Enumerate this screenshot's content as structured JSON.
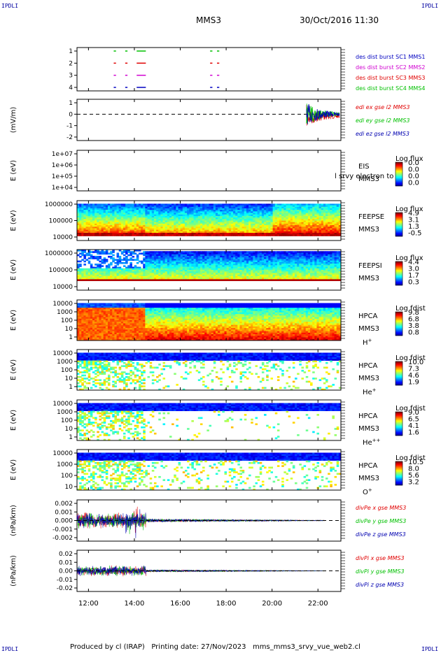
{
  "header": {
    "corner_label": "IPDLI",
    "spacecraft": "MMS3",
    "datetime": "30/Oct/2016 11:30"
  },
  "footer": {
    "text": "Produced by cl (IRAP)   Printing date: 27/Nov/2023   mms_mms3_srvy_vue_web2.cl"
  },
  "colors": {
    "red": "#e00000",
    "magenta": "#d000d0",
    "blue": "#0000c0",
    "green": "#00c000",
    "dark_red": "#b00000",
    "dark_blue": "#0000b0"
  },
  "x_axis": {
    "ticks": [
      "12:00",
      "14:00",
      "16:00",
      "18:00",
      "20:00",
      "22:00"
    ],
    "range_hours": [
      11.5,
      23.0
    ]
  },
  "chart_data": [
    {
      "type": "line",
      "id": "burst",
      "ylim": [
        0.5,
        4.5
      ],
      "yticks": [
        "1",
        "2",
        "3",
        "4"
      ],
      "legend": [
        {
          "name": "des dist burst SC1 MMS1",
          "color": "#0000c0"
        },
        {
          "name": "des dist burst SC2 MMS2",
          "color": "#d000d0"
        },
        {
          "name": "des dist burst SC3 MMS3",
          "color": "#e00000"
        },
        {
          "name": "des dist burst SC4 MMS4",
          "color": "#00c000"
        }
      ],
      "segments": [
        {
          "level": 4,
          "color": "#00c000",
          "x": [
            [
              13.1,
              13.2
            ],
            [
              13.6,
              13.7
            ],
            [
              14.1,
              14.5
            ],
            [
              17.3,
              17.4
            ],
            [
              17.6,
              17.7
            ]
          ]
        },
        {
          "level": 3,
          "color": "#e00000",
          "x": [
            [
              13.1,
              13.2
            ],
            [
              13.6,
              13.7
            ],
            [
              14.1,
              14.5
            ],
            [
              17.3,
              17.4
            ],
            [
              17.6,
              17.7
            ]
          ]
        },
        {
          "level": 2,
          "color": "#d000d0",
          "x": [
            [
              13.1,
              13.2
            ],
            [
              13.6,
              13.7
            ],
            [
              14.1,
              14.5
            ],
            [
              17.3,
              17.4
            ],
            [
              17.6,
              17.7
            ]
          ]
        },
        {
          "level": 1,
          "color": "#0000c0",
          "x": [
            [
              13.1,
              13.2
            ],
            [
              13.6,
              13.7
            ],
            [
              14.1,
              14.5
            ],
            [
              17.3,
              17.4
            ],
            [
              17.6,
              17.7
            ]
          ]
        }
      ]
    },
    {
      "type": "line",
      "id": "edi",
      "ylabel": "(mV/m)",
      "ylim": [
        -2,
        1.5
      ],
      "yticks": [
        "1",
        "0",
        "-1",
        "-2"
      ],
      "series": [
        {
          "name": "edi ex gse l2 MMS3",
          "color": "#e00000"
        },
        {
          "name": "edi ey gse l2 MMS3",
          "color": "#00c000"
        },
        {
          "name": "edi ez gse l2 MMS3",
          "color": "#0000b0"
        }
      ],
      "active_range": [
        21.5,
        23.0
      ]
    },
    {
      "type": "heatmap",
      "id": "eis",
      "ylabel": "E (eV)",
      "yticks": [
        "1e+07",
        "1e+06",
        "1e+05",
        "1e+04"
      ],
      "label": [
        "EIS",
        "MMS3"
      ],
      "overlay_text": "l srvy electron to",
      "colorbar": {
        "title": "Log flux",
        "ticks": [
          "0.0",
          "0.0",
          "0.0",
          "0.0"
        ]
      }
    },
    {
      "type": "heatmap",
      "id": "feepse",
      "ylabel": "E (eV)",
      "yticks": [
        "1000000",
        "100000",
        "10000"
      ],
      "label": [
        "FEEPSE",
        "MMS3"
      ],
      "colorbar": {
        "title": "Log flux",
        "ticks": [
          "4.9",
          "3.1",
          "1.3",
          "-0.5"
        ]
      }
    },
    {
      "type": "heatmap",
      "id": "feepsi",
      "ylabel": "E (eV)",
      "yticks": [
        "1000000",
        "100000",
        "10000"
      ],
      "label": [
        "FEEPSI",
        "MMS3"
      ],
      "colorbar": {
        "title": "Log flux",
        "ticks": [
          "4.4",
          "3.0",
          "1.7",
          "0.3"
        ]
      }
    },
    {
      "type": "heatmap",
      "id": "hpca_h",
      "ylabel": "E (eV)",
      "yticks": [
        "10000",
        "1000",
        "100",
        "10",
        "1"
      ],
      "label": [
        "HPCA",
        "MMS3",
        "H+"
      ],
      "colorbar": {
        "title": "Log fdist",
        "ticks": [
          "9.8",
          "6.8",
          "3.8",
          "0.8"
        ]
      }
    },
    {
      "type": "heatmap",
      "id": "hpca_he",
      "ylabel": "E (eV)",
      "yticks": [
        "10000",
        "1000",
        "100",
        "10",
        "1"
      ],
      "label": [
        "HPCA",
        "MMS3",
        "He+"
      ],
      "colorbar": {
        "title": "Log fdist",
        "ticks": [
          "10.0",
          "7.3",
          "4.6",
          "1.9"
        ]
      }
    },
    {
      "type": "heatmap",
      "id": "hpca_he2",
      "ylabel": "E (eV)",
      "yticks": [
        "10000",
        "1000",
        "100",
        "10",
        "1"
      ],
      "label": [
        "HPCA",
        "MMS3",
        "He++"
      ],
      "colorbar": {
        "title": "Log fdist",
        "ticks": [
          "9.0",
          "6.5",
          "4.1",
          "1.6"
        ]
      }
    },
    {
      "type": "heatmap",
      "id": "hpca_o",
      "ylabel": "E (eV)",
      "yticks": [
        "10000",
        "1000",
        "100",
        "10"
      ],
      "label": [
        "HPCA",
        "MMS3",
        "O+"
      ],
      "colorbar": {
        "title": "Log fdist",
        "ticks": [
          "10.5",
          "8.0",
          "5.6",
          "3.2"
        ]
      }
    },
    {
      "type": "line",
      "id": "divpe",
      "ylabel": "(nPa/km)",
      "ylim": [
        -0.025,
        0.025
      ],
      "yticks": [
        "0.002",
        "0.001",
        "0.000",
        "-0.001",
        "-0.002"
      ],
      "series": [
        {
          "name": "divPe x gse MMS3",
          "color": "#e00000"
        },
        {
          "name": "divPe y gse MMS3",
          "color": "#00c000"
        },
        {
          "name": "divPe z gse MMS3",
          "color": "#0000b0"
        }
      ]
    },
    {
      "type": "line",
      "id": "divpi",
      "ylabel": "(nPa/km)",
      "ylim": [
        -0.025,
        0.025
      ],
      "yticks": [
        "0.02",
        "0.01",
        "0.00",
        "-0.01",
        "-0.02"
      ],
      "series": [
        {
          "name": "divPi x gse MMS3",
          "color": "#e00000"
        },
        {
          "name": "divPi y gse MMS3",
          "color": "#00c000"
        },
        {
          "name": "divPi z gse MMS3",
          "color": "#0000b0"
        }
      ]
    }
  ]
}
